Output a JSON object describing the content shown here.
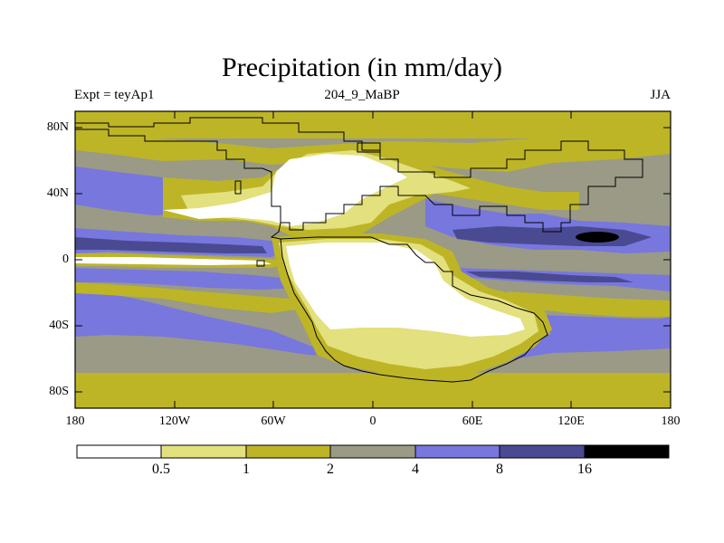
{
  "title": "Precipitation (in mm/day)",
  "subtitle": {
    "left": "Expt = teyAp1",
    "center": "204_9_MaBP",
    "right": "JJA"
  },
  "map": {
    "variable": "Precipitation",
    "units": "mm/day",
    "season": "JJA",
    "latitude_labels": [
      "80N",
      "40N",
      "0",
      "40S",
      "80S"
    ],
    "longitude_labels": [
      "180",
      "120W",
      "60W",
      "0",
      "60E",
      "120E",
      "180"
    ]
  },
  "colorbar": {
    "levels": [
      "0.5",
      "1",
      "2",
      "4",
      "8",
      "16"
    ],
    "colors": [
      "#ffffff",
      "#e3e07e",
      "#bdb526",
      "#9a9a86",
      "#7777de",
      "#4a4a92",
      "#000000"
    ]
  }
}
